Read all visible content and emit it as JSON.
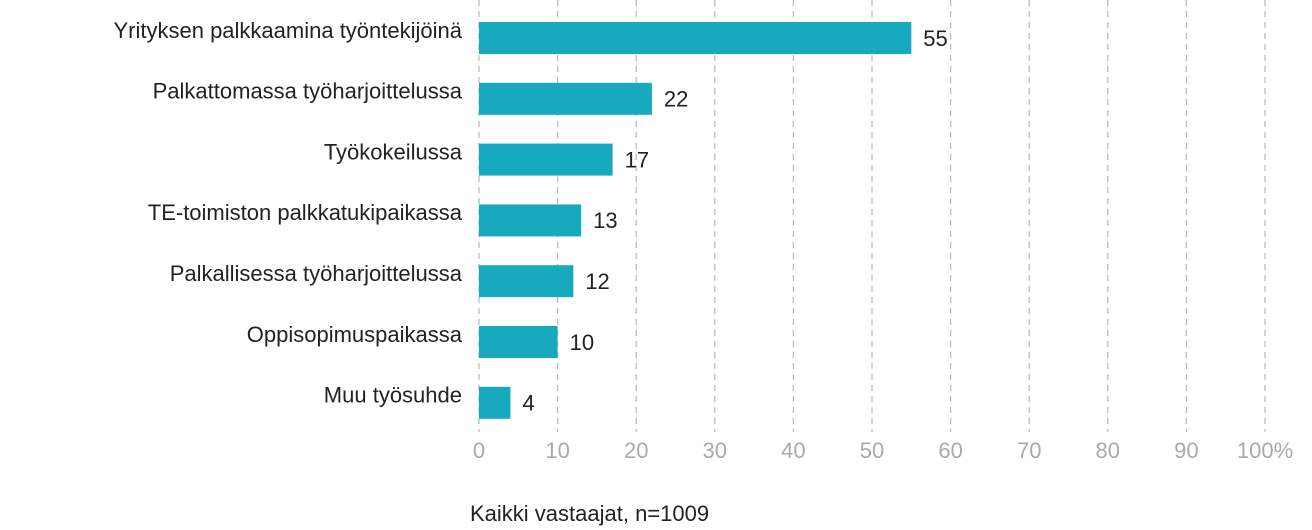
{
  "chart_data": {
    "type": "barh",
    "categories": [
      "Yrityksen palkkaamina työntekijöinä",
      "Palkattomassa työharjoittelussa",
      "Työkokeilussa",
      "TE-toimiston palkkatukipaikassa",
      "Palkallisessa työharjoittelussa",
      "Oppisopimuspaikassa",
      "Muu työsuhde"
    ],
    "values": [
      55,
      22,
      17,
      13,
      12,
      10,
      4
    ],
    "color": "#17a9bd",
    "xlim": [
      0,
      100
    ],
    "xticks": [
      0,
      10,
      20,
      30,
      40,
      50,
      60,
      70,
      80,
      90,
      {
        "value": 100,
        "label": "100%"
      }
    ],
    "grid": true,
    "x_label": "Kaikki vastaajat, n=1009"
  }
}
